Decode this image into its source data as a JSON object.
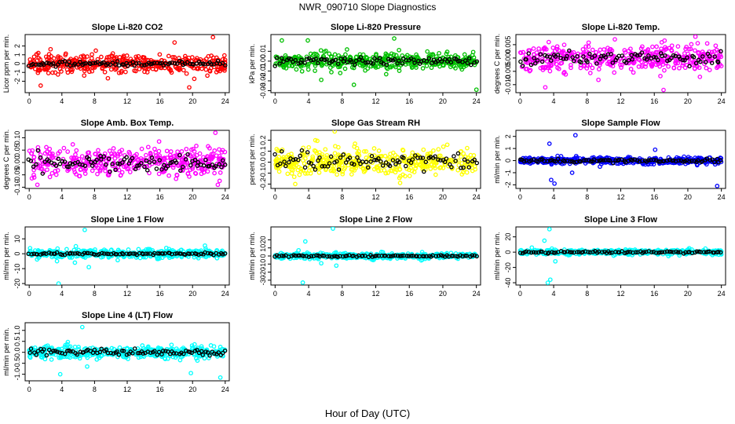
{
  "figure": {
    "title": "NWR_090710  Slope Diagnostics",
    "xlabel": "Hour of Day (UTC)"
  },
  "chart_data": [
    {
      "type": "scatter",
      "title": "Slope Li-820 CO2",
      "ylabel": "Licor ppm per min.",
      "color": "#ff0000",
      "ylim": [
        -3.3,
        3.3
      ],
      "yticks": [
        -2,
        -1,
        0,
        1,
        2
      ],
      "spread": 0.9,
      "black_spread": 0.25,
      "outliers": [
        [
          22.5,
          3.0
        ],
        [
          19.6,
          -2.7
        ],
        [
          1.4,
          -2.5
        ],
        [
          17.8,
          2.4
        ]
      ],
      "xlim": [
        -0.5,
        24.5
      ],
      "xticks": [
        0,
        4,
        8,
        12,
        16,
        20,
        24
      ]
    },
    {
      "type": "scatter",
      "title": "Slope Li-820 Pressure",
      "ylabel": "kPa per min.",
      "color": "#00c000",
      "ylim": [
        -0.032,
        0.027
      ],
      "yticks": [
        -0.03,
        -0.02,
        -0.01,
        0.0,
        0.01
      ],
      "spread": 0.008,
      "black_spread": 0.004,
      "outliers": [
        [
          0.8,
          0.021
        ],
        [
          3.9,
          0.021
        ],
        [
          5.5,
          -0.019
        ],
        [
          14.2,
          0.023
        ],
        [
          24.0,
          -0.029
        ],
        [
          9.4,
          -0.024
        ]
      ],
      "xlim": [
        -0.5,
        24.5
      ],
      "xticks": [
        0,
        4,
        8,
        12,
        16,
        20,
        24
      ]
    },
    {
      "type": "scatter",
      "title": "Slope Li-820 Temp.",
      "ylabel": "degrees C per min.",
      "color": "#ff00ff",
      "ylim": [
        -0.013,
        0.0088
      ],
      "yticks": [
        -0.01,
        -0.005,
        0.0,
        0.005
      ],
      "spread": 0.0045,
      "black_spread": 0.0025,
      "outliers": [
        [
          20.9,
          0.008
        ],
        [
          17.1,
          -0.012
        ],
        [
          11.3,
          0.007
        ],
        [
          3.0,
          -0.011
        ]
      ],
      "xlim": [
        -0.5,
        24.5
      ],
      "xticks": [
        0,
        4,
        8,
        12,
        16,
        20,
        24
      ]
    },
    {
      "type": "scatter",
      "title": "Slope Amb. Box Temp.",
      "ylabel": "degrees C per min.",
      "color": "#ff00ff",
      "ylim": [
        -0.105,
        0.13
      ],
      "yticks": [
        -0.1,
        -0.05,
        0.0,
        0.05,
        0.1
      ],
      "spread": 0.05,
      "black_spread": 0.03,
      "outliers": [
        [
          22.8,
          0.12
        ],
        [
          23.1,
          -0.09
        ],
        [
          1.0,
          -0.09
        ],
        [
          15.9,
          0.085
        ]
      ],
      "xlim": [
        -0.5,
        24.5
      ],
      "xticks": [
        0,
        4,
        8,
        12,
        16,
        20,
        24
      ]
    },
    {
      "type": "scatter",
      "title": "Slope Gas Stream RH",
      "ylabel": "percent per min.",
      "color": "#ffff00",
      "ylim": [
        -0.24,
        0.29
      ],
      "yticks": [
        -0.2,
        -0.1,
        0.0,
        0.1,
        0.2
      ],
      "spread": 0.11,
      "black_spread": 0.08,
      "outliers": [
        [
          7.1,
          0.28
        ],
        [
          4.8,
          0.2
        ],
        [
          2.4,
          -0.2
        ],
        [
          14.9,
          -0.19
        ]
      ],
      "xlim": [
        -0.5,
        24.5
      ],
      "xticks": [
        0,
        4,
        8,
        12,
        16,
        20,
        24
      ]
    },
    {
      "type": "scatter",
      "title": "Slope Sample Flow",
      "ylabel": "ml/min per min.",
      "color": "#0000ff",
      "ylim": [
        -2.3,
        2.5
      ],
      "yticks": [
        -2,
        -1,
        0,
        1,
        2
      ],
      "spread": 0.25,
      "black_spread": 0.15,
      "outliers": [
        [
          6.6,
          2.1
        ],
        [
          3.5,
          1.4
        ],
        [
          3.7,
          -1.6
        ],
        [
          4.1,
          -1.9
        ],
        [
          6.2,
          -1.0
        ],
        [
          23.5,
          -2.1
        ],
        [
          16.1,
          0.9
        ]
      ],
      "xlim": [
        -0.5,
        24.5
      ],
      "xticks": [
        0,
        4,
        8,
        12,
        16,
        20,
        24
      ]
    },
    {
      "type": "scatter",
      "title": "Slope Line 1 Flow",
      "ylabel": "ml/min per min.",
      "color": "#00ffff",
      "ylim": [
        -21,
        18
      ],
      "yticks": [
        -20,
        -10,
        0,
        10
      ],
      "spread": 2.5,
      "black_spread": 0.6,
      "outliers": [
        [
          6.8,
          16
        ],
        [
          3.6,
          -20
        ],
        [
          7.3,
          -9
        ],
        [
          5.6,
          -6
        ],
        [
          3.4,
          -5
        ]
      ],
      "xlim": [
        -0.5,
        24.5
      ],
      "xticks": [
        0,
        4,
        8,
        12,
        16,
        20,
        24
      ]
    },
    {
      "type": "scatter",
      "title": "Slope Line 2 Flow",
      "ylabel": "ml/min per min.",
      "color": "#00ffff",
      "ylim": [
        -36,
        36
      ],
      "yticks": [
        -30,
        -20,
        -10,
        0,
        10,
        20
      ],
      "spread": 3,
      "black_spread": 1.2,
      "outliers": [
        [
          6.9,
          34
        ],
        [
          3.3,
          -33
        ],
        [
          3.6,
          18
        ],
        [
          7.3,
          -12
        ],
        [
          5.5,
          -9
        ],
        [
          2.8,
          7
        ]
      ],
      "xlim": [
        -0.5,
        24.5
      ],
      "xticks": [
        0,
        4,
        8,
        12,
        16,
        20,
        24
      ]
    },
    {
      "type": "scatter",
      "title": "Slope Line 3 Flow",
      "ylabel": "ml/min per min.",
      "color": "#00ffff",
      "ylim": [
        -43,
        33
      ],
      "yticks": [
        -40,
        -20,
        0,
        20
      ],
      "spread": 3,
      "black_spread": 1.5,
      "outliers": [
        [
          3.5,
          30
        ],
        [
          3.3,
          -40
        ],
        [
          3.6,
          -36
        ],
        [
          2.9,
          15
        ],
        [
          4.2,
          -12
        ],
        [
          1.4,
          6
        ]
      ],
      "xlim": [
        -0.5,
        24.5
      ],
      "xticks": [
        0,
        4,
        8,
        12,
        16,
        20,
        24
      ]
    },
    {
      "type": "scatter",
      "title": "Slope Line 4 (LT) Flow",
      "ylabel": "ml/min per min.",
      "color": "#00ffff",
      "ylim": [
        -1.3,
        1.35
      ],
      "yticks": [
        -1.0,
        -0.5,
        0.0,
        0.5,
        1.0
      ],
      "spread": 0.25,
      "black_spread": 0.15,
      "outliers": [
        [
          6.5,
          1.15
        ],
        [
          3.8,
          -1.0
        ],
        [
          23.4,
          -1.15
        ],
        [
          19.8,
          -0.95
        ],
        [
          7.1,
          -0.65
        ]
      ],
      "xlim": [
        -0.5,
        24.5
      ],
      "xticks": [
        0,
        4,
        8,
        12,
        16,
        20,
        24
      ]
    }
  ]
}
